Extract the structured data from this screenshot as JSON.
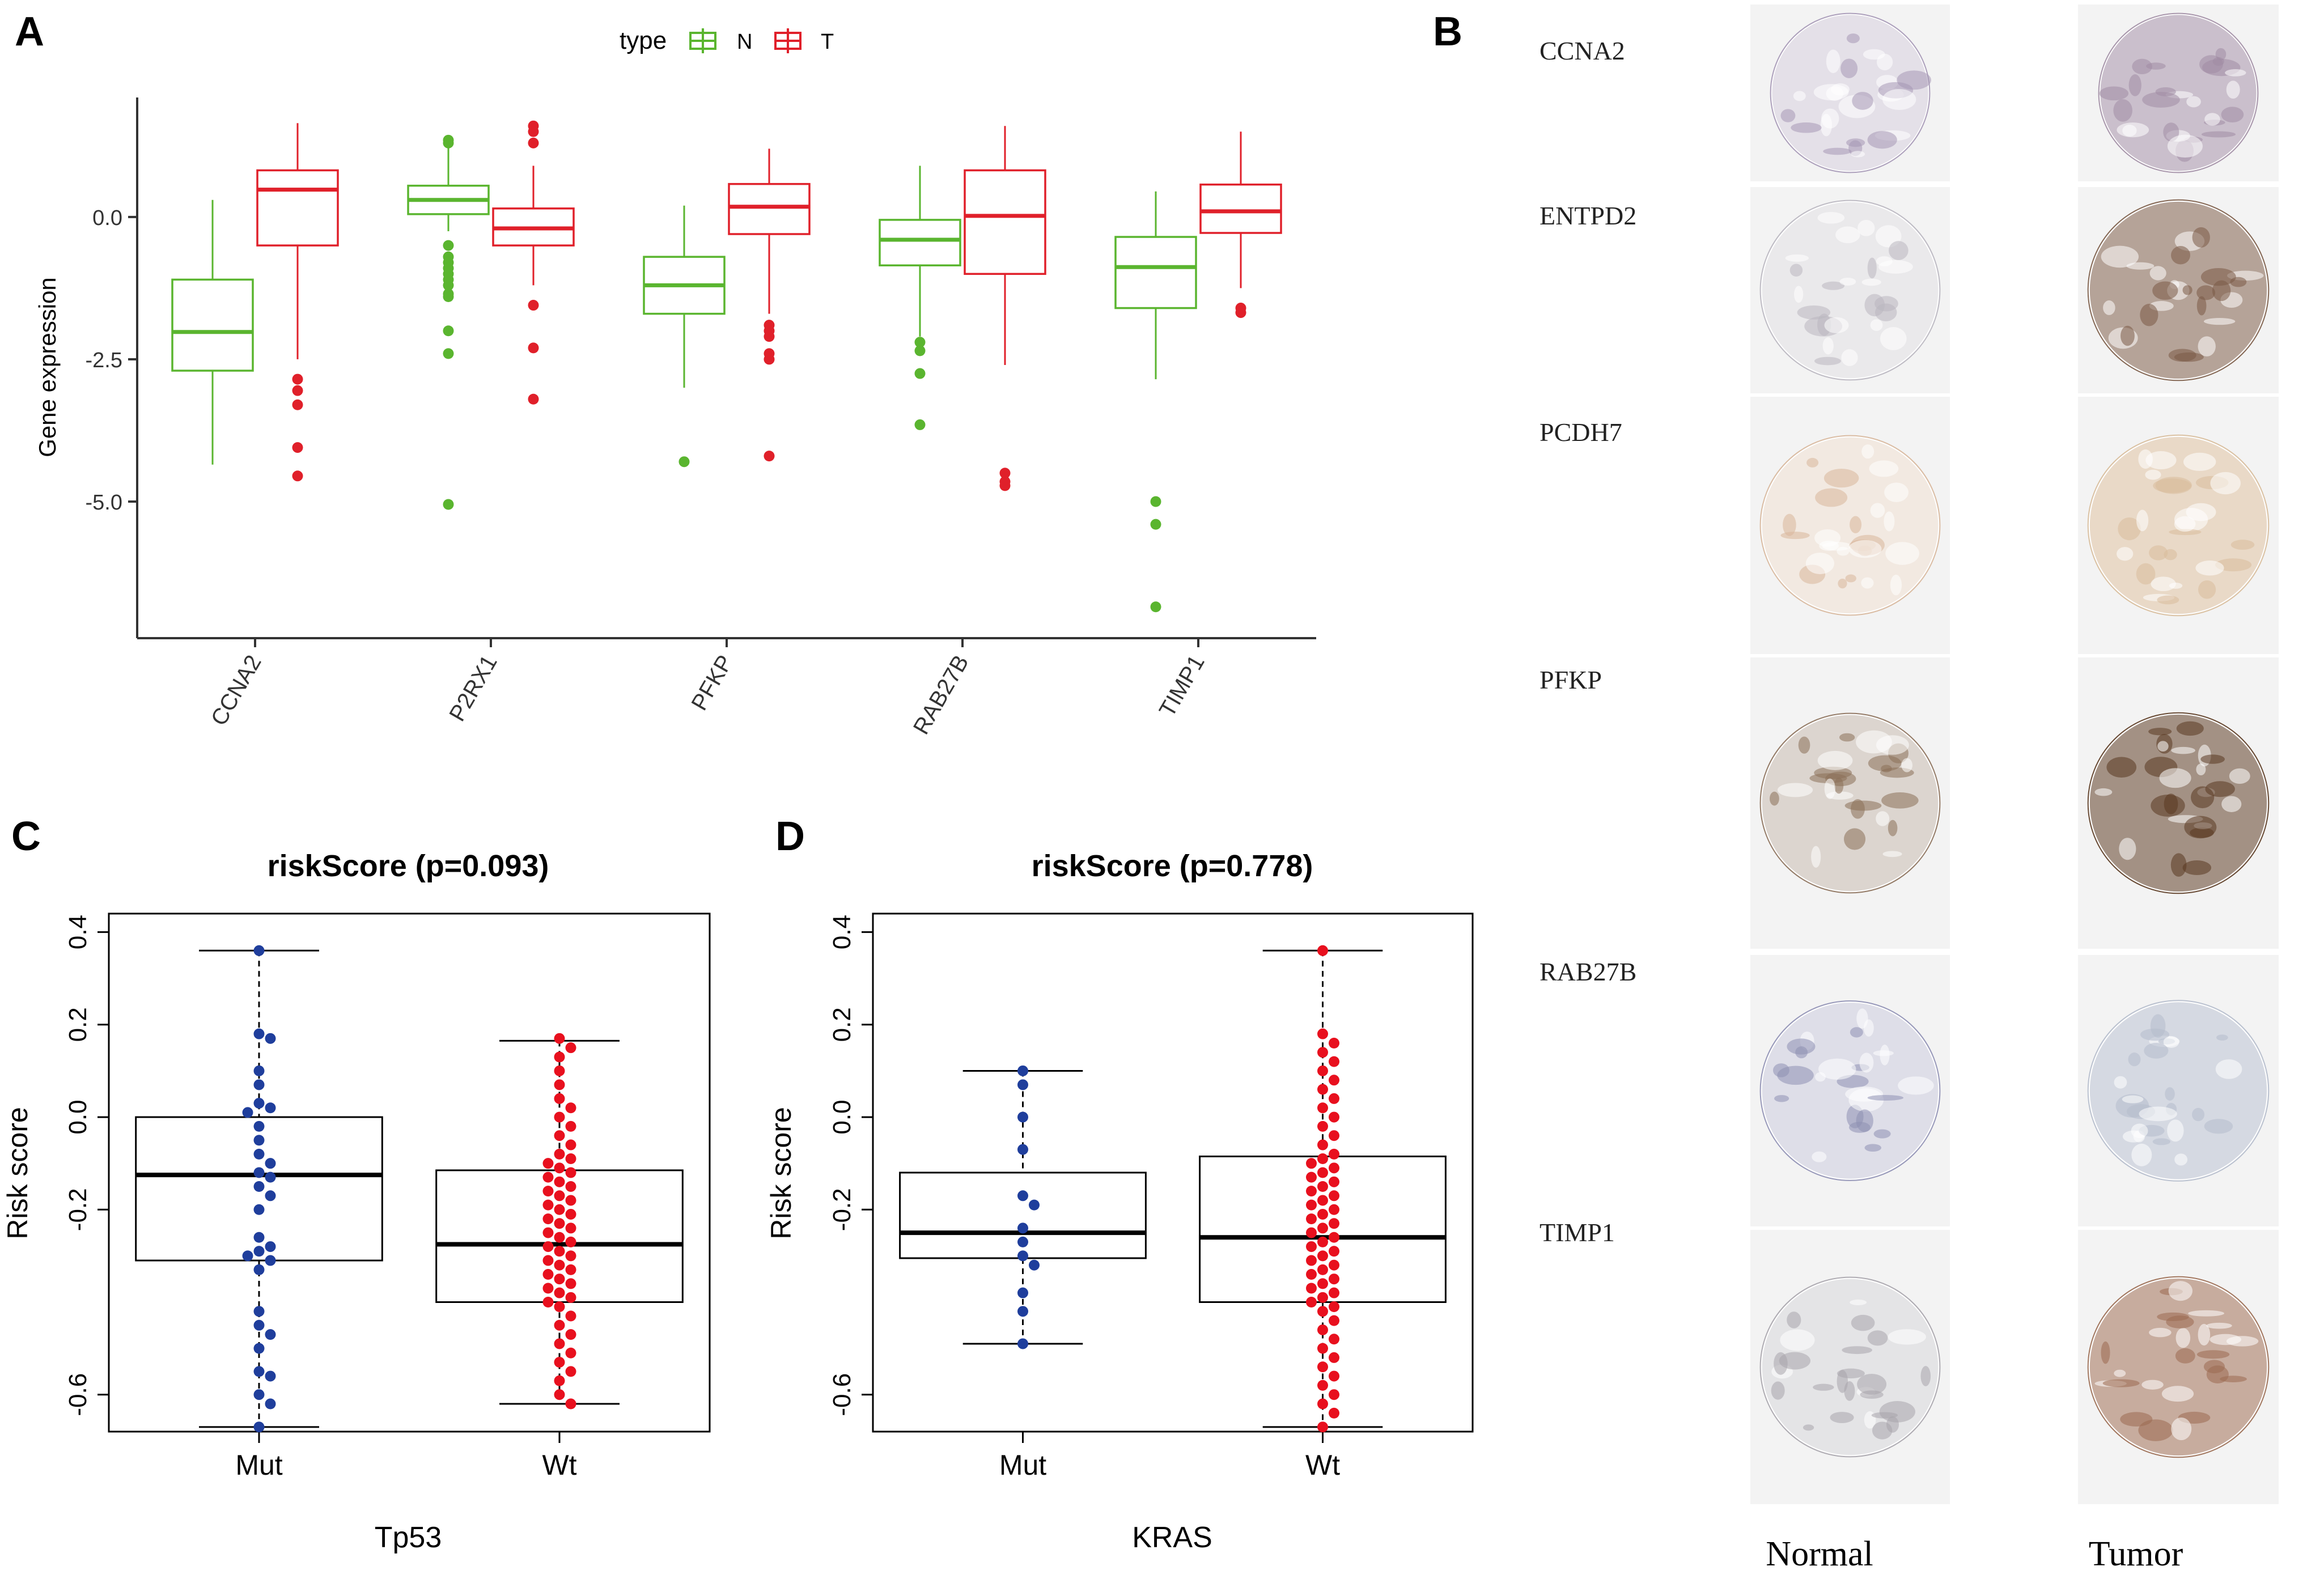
{
  "panels": {
    "a": "A",
    "b": "B",
    "c": "C",
    "d": "D"
  },
  "colors": {
    "normal": "#5ab52f",
    "tumor": "#e0202a",
    "mut": "#1f3e9c",
    "wt": "#e8101e",
    "ink": "#000000"
  },
  "chart_data": [
    {
      "id": "A",
      "type": "box",
      "title": "",
      "ylabel": "Gene expression",
      "xlabel": "",
      "ylim": [
        -7.4,
        2.1
      ],
      "yticks": [
        0.0,
        -2.5,
        -5.0
      ],
      "ytick_labels": [
        "0.0",
        "-2.5",
        "-5.0"
      ],
      "grid": false,
      "legend": {
        "title": "type",
        "entries": [
          "N",
          "T"
        ],
        "placement": "top"
      },
      "categories": [
        "CCNA2",
        "P2RX1",
        "PFKP",
        "RAB27B",
        "TIMP1"
      ],
      "series": [
        {
          "name": "N",
          "boxes": [
            {
              "min": -4.35,
              "q1": -2.7,
              "median": -2.02,
              "q3": -1.1,
              "max": 0.3,
              "outliers": []
            },
            {
              "min": -0.25,
              "q1": 0.05,
              "median": 0.3,
              "q3": 0.55,
              "max": 1.3,
              "outliers": [
                1.35,
                1.3,
                -0.5,
                -0.7,
                -0.8,
                -0.9,
                -1.0,
                -1.1,
                -1.2,
                -1.35,
                -1.4,
                -2.0,
                -2.4,
                -5.05
              ]
            },
            {
              "min": -3.0,
              "q1": -1.7,
              "median": -1.2,
              "q3": -0.7,
              "max": 0.2,
              "outliers": [
                -4.3
              ]
            },
            {
              "min": -2.1,
              "q1": -0.85,
              "median": -0.4,
              "q3": -0.05,
              "max": 0.9,
              "outliers": [
                -2.2,
                -2.35,
                -2.75,
                -3.65
              ]
            },
            {
              "min": -2.85,
              "q1": -1.6,
              "median": -0.88,
              "q3": -0.35,
              "max": 0.45,
              "outliers": [
                -5.0,
                -5.4,
                -6.85
              ]
            }
          ]
        },
        {
          "name": "T",
          "boxes": [
            {
              "min": -2.5,
              "q1": -0.5,
              "median": 0.48,
              "q3": 0.82,
              "max": 1.65,
              "outliers": [
                -2.85,
                -3.05,
                -3.3,
                -4.05,
                -4.55
              ]
            },
            {
              "min": -1.2,
              "q1": -0.5,
              "median": -0.2,
              "q3": 0.15,
              "max": 0.9,
              "outliers": [
                1.6,
                1.5,
                1.3,
                -1.55,
                -2.3,
                -3.2
              ]
            },
            {
              "min": -1.7,
              "q1": -0.3,
              "median": 0.18,
              "q3": 0.58,
              "max": 1.2,
              "outliers": [
                -1.9,
                -2.0,
                -2.1,
                -2.4,
                -2.5,
                -4.2
              ]
            },
            {
              "min": -2.6,
              "q1": -1.0,
              "median": 0.02,
              "q3": 0.82,
              "max": 1.6,
              "outliers": [
                -4.5,
                -4.65,
                -4.72
              ]
            },
            {
              "min": -1.25,
              "q1": -0.28,
              "median": 0.1,
              "q3": 0.57,
              "max": 1.5,
              "outliers": [
                -1.6,
                -1.68
              ]
            }
          ]
        }
      ]
    },
    {
      "id": "C",
      "type": "box",
      "title": "riskScore (p=0.093)",
      "ylabel": "Risk score",
      "xlabel": "Tp53",
      "ylim": [
        -0.68,
        0.44
      ],
      "yticks": [
        0.4,
        0.2,
        0.0,
        -0.2,
        -0.6
      ],
      "ytick_labels": [
        "0.4",
        "0.2",
        "0.0",
        "-0.2",
        "-0.6"
      ],
      "grid": false,
      "categories": [
        "Mut",
        "Wt"
      ],
      "boxes": [
        {
          "min": -0.67,
          "q1": -0.31,
          "median": -0.125,
          "q3": 0.0,
          "max": 0.36,
          "points": [
            0.36,
            0.18,
            0.17,
            0.1,
            0.07,
            0.03,
            0.02,
            0.01,
            -0.02,
            -0.05,
            -0.08,
            -0.1,
            -0.12,
            -0.13,
            -0.15,
            -0.17,
            -0.2,
            -0.26,
            -0.28,
            -0.29,
            -0.3,
            -0.31,
            -0.33,
            -0.42,
            -0.45,
            -0.47,
            -0.5,
            -0.55,
            -0.56,
            -0.6,
            -0.62,
            -0.67
          ]
        },
        {
          "min": -0.62,
          "q1": -0.4,
          "median": -0.275,
          "q3": -0.115,
          "max": 0.165,
          "points": [
            0.17,
            0.15,
            0.13,
            0.1,
            0.07,
            0.04,
            0.02,
            0.0,
            -0.02,
            -0.04,
            -0.06,
            -0.08,
            -0.09,
            -0.1,
            -0.11,
            -0.12,
            -0.13,
            -0.14,
            -0.15,
            -0.16,
            -0.17,
            -0.18,
            -0.19,
            -0.2,
            -0.21,
            -0.22,
            -0.23,
            -0.24,
            -0.25,
            -0.26,
            -0.27,
            -0.28,
            -0.29,
            -0.3,
            -0.31,
            -0.32,
            -0.33,
            -0.34,
            -0.35,
            -0.36,
            -0.37,
            -0.38,
            -0.39,
            -0.4,
            -0.41,
            -0.43,
            -0.45,
            -0.47,
            -0.49,
            -0.51,
            -0.53,
            -0.55,
            -0.57,
            -0.6,
            -0.62
          ]
        }
      ]
    },
    {
      "id": "D",
      "type": "box",
      "title": "riskScore (p=0.778)",
      "ylabel": "Risk score",
      "xlabel": "KRAS",
      "ylim": [
        -0.68,
        0.44
      ],
      "yticks": [
        0.4,
        0.2,
        0.0,
        -0.2,
        -0.6
      ],
      "ytick_labels": [
        "0.4",
        "0.2",
        "0.0",
        "-0.2",
        "-0.6"
      ],
      "grid": false,
      "categories": [
        "Mut",
        "Wt"
      ],
      "boxes": [
        {
          "min": -0.49,
          "q1": -0.305,
          "median": -0.25,
          "q3": -0.12,
          "max": 0.1,
          "points": [
            0.1,
            0.07,
            0.0,
            -0.07,
            -0.17,
            -0.19,
            -0.24,
            -0.27,
            -0.3,
            -0.32,
            -0.38,
            -0.42,
            -0.49
          ]
        },
        {
          "min": -0.67,
          "q1": -0.4,
          "median": -0.26,
          "q3": -0.085,
          "max": 0.36,
          "points": [
            0.36,
            0.18,
            0.16,
            0.14,
            0.12,
            0.1,
            0.08,
            0.06,
            0.04,
            0.02,
            0.0,
            -0.02,
            -0.04,
            -0.06,
            -0.08,
            -0.09,
            -0.1,
            -0.11,
            -0.12,
            -0.13,
            -0.14,
            -0.15,
            -0.16,
            -0.17,
            -0.18,
            -0.19,
            -0.2,
            -0.21,
            -0.22,
            -0.23,
            -0.24,
            -0.25,
            -0.26,
            -0.27,
            -0.28,
            -0.29,
            -0.3,
            -0.31,
            -0.32,
            -0.33,
            -0.34,
            -0.35,
            -0.36,
            -0.37,
            -0.38,
            -0.39,
            -0.4,
            -0.41,
            -0.42,
            -0.44,
            -0.46,
            -0.48,
            -0.5,
            -0.52,
            -0.54,
            -0.56,
            -0.58,
            -0.6,
            -0.62,
            -0.64,
            -0.67
          ]
        }
      ]
    }
  ],
  "panel_b": {
    "genes": [
      "CCNA2",
      "ENTPD2",
      "PCDH7",
      "PFKP",
      "RAB27B",
      "TIMP1"
    ],
    "columns": [
      "Normal",
      "Tumor"
    ],
    "stain": {
      "normal": [
        "#a597b5",
        "#b9b6bf",
        "#d8b79b",
        "#8a6f58",
        "#8e8fb3",
        "#a7a4ab"
      ],
      "tumor": [
        "#a08ca4",
        "#7a5a45",
        "#d8bc9a",
        "#5a3820",
        "#b4bccc",
        "#9a6a50"
      ]
    }
  }
}
